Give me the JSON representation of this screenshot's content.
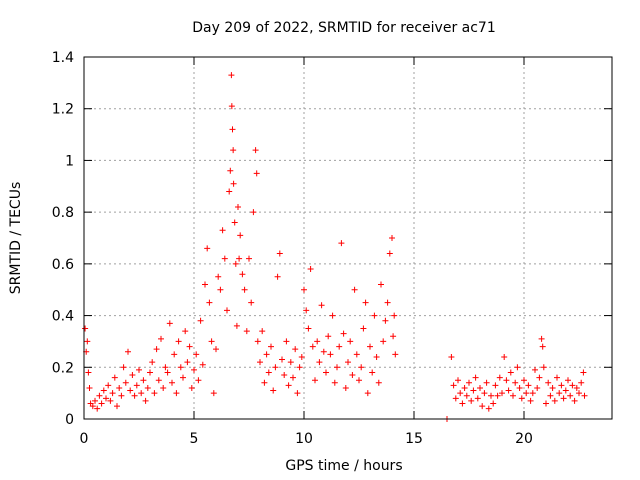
{
  "chart_data": {
    "type": "scatter",
    "title": "Day 209 of 2022, SRMTID for receiver ac71",
    "xlabel": "GPS time / hours",
    "ylabel": "SRMTID / TECUs",
    "xlim": [
      0,
      24
    ],
    "ylim": [
      0,
      1.4
    ],
    "x_ticks": [
      0,
      5,
      10,
      15,
      20
    ],
    "y_ticks": [
      0,
      0.2,
      0.4,
      0.6,
      0.8,
      1,
      1.2,
      1.4
    ],
    "x_tick_labels": [
      "0",
      "5",
      "10",
      "15",
      "20"
    ],
    "y_tick_labels": [
      "0",
      "0.2",
      "0.4",
      "0.6",
      "0.8",
      "1",
      "1.2",
      "1.4"
    ],
    "grid": true,
    "marker": "plus",
    "color": "#ff0000",
    "series": [
      {
        "name": "SRMTID",
        "points": [
          [
            0.05,
            0.35
          ],
          [
            0.1,
            0.26
          ],
          [
            0.15,
            0.3
          ],
          [
            0.2,
            0.18
          ],
          [
            0.25,
            0.12
          ],
          [
            0.3,
            0.06
          ],
          [
            0.4,
            0.05
          ],
          [
            0.5,
            0.07
          ],
          [
            0.6,
            0.04
          ],
          [
            0.7,
            0.09
          ],
          [
            0.8,
            0.06
          ],
          [
            0.9,
            0.11
          ],
          [
            1.0,
            0.08
          ],
          [
            1.1,
            0.13
          ],
          [
            1.2,
            0.07
          ],
          [
            1.3,
            0.1
          ],
          [
            1.4,
            0.16
          ],
          [
            1.5,
            0.05
          ],
          [
            1.6,
            0.12
          ],
          [
            1.7,
            0.09
          ],
          [
            1.8,
            0.2
          ],
          [
            1.9,
            0.14
          ],
          [
            2.0,
            0.26
          ],
          [
            2.1,
            0.11
          ],
          [
            2.2,
            0.17
          ],
          [
            2.3,
            0.09
          ],
          [
            2.4,
            0.13
          ],
          [
            2.5,
            0.19
          ],
          [
            2.6,
            0.1
          ],
          [
            2.7,
            0.15
          ],
          [
            2.8,
            0.07
          ],
          [
            2.9,
            0.12
          ],
          [
            3.0,
            0.18
          ],
          [
            3.1,
            0.22
          ],
          [
            3.2,
            0.1
          ],
          [
            3.3,
            0.27
          ],
          [
            3.4,
            0.15
          ],
          [
            3.5,
            0.31
          ],
          [
            3.6,
            0.12
          ],
          [
            3.7,
            0.2
          ],
          [
            3.8,
            0.18
          ],
          [
            3.9,
            0.37
          ],
          [
            4.0,
            0.14
          ],
          [
            4.1,
            0.25
          ],
          [
            4.2,
            0.1
          ],
          [
            4.3,
            0.3
          ],
          [
            4.4,
            0.2
          ],
          [
            4.5,
            0.16
          ],
          [
            4.6,
            0.34
          ],
          [
            4.7,
            0.22
          ],
          [
            4.8,
            0.28
          ],
          [
            4.9,
            0.12
          ],
          [
            5.0,
            0.19
          ],
          [
            5.1,
            0.25
          ],
          [
            5.2,
            0.15
          ],
          [
            5.3,
            0.38
          ],
          [
            5.4,
            0.21
          ],
          [
            5.5,
            0.52
          ],
          [
            5.6,
            0.66
          ],
          [
            5.7,
            0.45
          ],
          [
            5.8,
            0.3
          ],
          [
            5.9,
            0.1
          ],
          [
            6.0,
            0.27
          ],
          [
            6.1,
            0.55
          ],
          [
            6.2,
            0.5
          ],
          [
            6.3,
            0.73
          ],
          [
            6.4,
            0.62
          ],
          [
            6.5,
            0.42
          ],
          [
            6.6,
            0.88
          ],
          [
            6.65,
            0.96
          ],
          [
            6.7,
            1.33
          ],
          [
            6.72,
            1.21
          ],
          [
            6.75,
            1.12
          ],
          [
            6.78,
            1.04
          ],
          [
            6.8,
            0.91
          ],
          [
            6.85,
            0.76
          ],
          [
            6.9,
            0.6
          ],
          [
            6.95,
            0.36
          ],
          [
            7.0,
            0.82
          ],
          [
            7.05,
            0.62
          ],
          [
            7.1,
            0.71
          ],
          [
            7.2,
            0.56
          ],
          [
            7.3,
            0.5
          ],
          [
            7.4,
            0.34
          ],
          [
            7.5,
            0.62
          ],
          [
            7.6,
            0.45
          ],
          [
            7.7,
            0.8
          ],
          [
            7.8,
            1.04
          ],
          [
            7.85,
            0.95
          ],
          [
            7.9,
            0.3
          ],
          [
            8.0,
            0.22
          ],
          [
            8.1,
            0.34
          ],
          [
            8.2,
            0.14
          ],
          [
            8.3,
            0.25
          ],
          [
            8.4,
            0.18
          ],
          [
            8.5,
            0.28
          ],
          [
            8.6,
            0.11
          ],
          [
            8.7,
            0.2
          ],
          [
            8.8,
            0.55
          ],
          [
            8.9,
            0.64
          ],
          [
            9.0,
            0.23
          ],
          [
            9.1,
            0.17
          ],
          [
            9.2,
            0.3
          ],
          [
            9.3,
            0.13
          ],
          [
            9.4,
            0.22
          ],
          [
            9.5,
            0.16
          ],
          [
            9.6,
            0.27
          ],
          [
            9.7,
            0.1
          ],
          [
            9.8,
            0.2
          ],
          [
            9.9,
            0.24
          ],
          [
            10.0,
            0.5
          ],
          [
            10.1,
            0.42
          ],
          [
            10.2,
            0.35
          ],
          [
            10.3,
            0.58
          ],
          [
            10.4,
            0.28
          ],
          [
            10.5,
            0.15
          ],
          [
            10.6,
            0.3
          ],
          [
            10.7,
            0.22
          ],
          [
            10.8,
            0.44
          ],
          [
            10.9,
            0.26
          ],
          [
            11.0,
            0.18
          ],
          [
            11.1,
            0.32
          ],
          [
            11.2,
            0.25
          ],
          [
            11.3,
            0.4
          ],
          [
            11.4,
            0.14
          ],
          [
            11.5,
            0.2
          ],
          [
            11.6,
            0.28
          ],
          [
            11.7,
            0.68
          ],
          [
            11.8,
            0.33
          ],
          [
            11.9,
            0.12
          ],
          [
            12.0,
            0.22
          ],
          [
            12.1,
            0.3
          ],
          [
            12.2,
            0.17
          ],
          [
            12.3,
            0.5
          ],
          [
            12.4,
            0.25
          ],
          [
            12.5,
            0.15
          ],
          [
            12.6,
            0.2
          ],
          [
            12.7,
            0.35
          ],
          [
            12.8,
            0.45
          ],
          [
            12.9,
            0.1
          ],
          [
            13.0,
            0.28
          ],
          [
            13.1,
            0.18
          ],
          [
            13.2,
            0.4
          ],
          [
            13.3,
            0.24
          ],
          [
            13.4,
            0.14
          ],
          [
            13.5,
            0.52
          ],
          [
            13.6,
            0.3
          ],
          [
            13.7,
            0.38
          ],
          [
            13.8,
            0.45
          ],
          [
            13.9,
            0.64
          ],
          [
            14.0,
            0.7
          ],
          [
            14.05,
            0.32
          ],
          [
            14.1,
            0.4
          ],
          [
            14.15,
            0.25
          ],
          [
            16.5,
            0.0
          ],
          [
            16.7,
            0.24
          ],
          [
            16.8,
            0.13
          ],
          [
            16.9,
            0.08
          ],
          [
            17.0,
            0.15
          ],
          [
            17.1,
            0.1
          ],
          [
            17.2,
            0.06
          ],
          [
            17.3,
            0.12
          ],
          [
            17.4,
            0.09
          ],
          [
            17.5,
            0.14
          ],
          [
            17.6,
            0.07
          ],
          [
            17.7,
            0.11
          ],
          [
            17.8,
            0.16
          ],
          [
            17.9,
            0.08
          ],
          [
            18.0,
            0.12
          ],
          [
            18.1,
            0.05
          ],
          [
            18.2,
            0.1
          ],
          [
            18.3,
            0.14
          ],
          [
            18.4,
            0.04
          ],
          [
            18.5,
            0.09
          ],
          [
            18.6,
            0.06
          ],
          [
            18.7,
            0.13
          ],
          [
            18.8,
            0.09
          ],
          [
            18.9,
            0.16
          ],
          [
            19.0,
            0.1
          ],
          [
            19.1,
            0.24
          ],
          [
            19.2,
            0.15
          ],
          [
            19.3,
            0.11
          ],
          [
            19.4,
            0.18
          ],
          [
            19.5,
            0.09
          ],
          [
            19.6,
            0.14
          ],
          [
            19.7,
            0.2
          ],
          [
            19.8,
            0.12
          ],
          [
            19.9,
            0.08
          ],
          [
            20.0,
            0.15
          ],
          [
            20.1,
            0.1
          ],
          [
            20.2,
            0.13
          ],
          [
            20.3,
            0.07
          ],
          [
            20.4,
            0.1
          ],
          [
            20.5,
            0.19
          ],
          [
            20.6,
            0.12
          ],
          [
            20.7,
            0.16
          ],
          [
            20.8,
            0.31
          ],
          [
            20.85,
            0.28
          ],
          [
            20.9,
            0.2
          ],
          [
            21.0,
            0.06
          ],
          [
            21.1,
            0.14
          ],
          [
            21.2,
            0.09
          ],
          [
            21.3,
            0.12
          ],
          [
            21.4,
            0.07
          ],
          [
            21.5,
            0.16
          ],
          [
            21.6,
            0.1
          ],
          [
            21.7,
            0.13
          ],
          [
            21.8,
            0.08
          ],
          [
            21.9,
            0.11
          ],
          [
            22.0,
            0.15
          ],
          [
            22.1,
            0.09
          ],
          [
            22.2,
            0.13
          ],
          [
            22.3,
            0.07
          ],
          [
            22.4,
            0.12
          ],
          [
            22.5,
            0.1
          ],
          [
            22.6,
            0.14
          ],
          [
            22.7,
            0.18
          ],
          [
            22.75,
            0.09
          ]
        ]
      }
    ]
  }
}
